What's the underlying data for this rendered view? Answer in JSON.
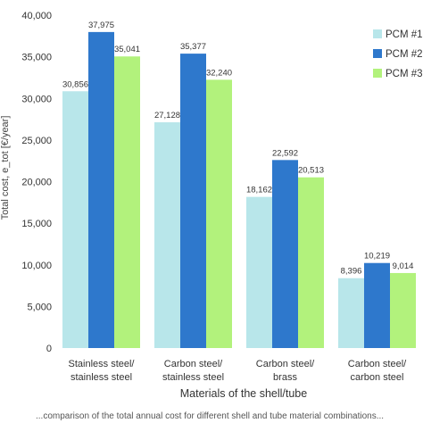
{
  "chart_data": {
    "type": "bar",
    "xlabel": "Materials of the shell/tube",
    "ylabel": "Total cost, e_tot [€/year]",
    "ylim": [
      0,
      40000
    ],
    "yticks": [
      "0",
      "5,000",
      "10,000",
      "15,000",
      "20,000",
      "25,000",
      "30,000",
      "35,000",
      "40,000"
    ],
    "categories": [
      [
        "Stainless steel/",
        "stainless steel"
      ],
      [
        "Carbon steel/",
        "stainless steel"
      ],
      [
        "Carbon steel/",
        "brass"
      ],
      [
        "Carbon steel/",
        "carbon steel"
      ]
    ],
    "series": [
      {
        "name": "PCM #1",
        "color": "#b8e6ea",
        "values": [
          30856,
          27128,
          18162,
          8396
        ],
        "labels": [
          "30,856",
          "27,128",
          "18,162",
          "8,396"
        ]
      },
      {
        "name": "PCM #2",
        "color": "#2e78cc",
        "values": [
          37975,
          35377,
          22592,
          10219
        ],
        "labels": [
          "37,975",
          "35,377",
          "22,592",
          "10,219"
        ]
      },
      {
        "name": "PCM #3",
        "color": "#b2f27c",
        "values": [
          35041,
          32240,
          20513,
          9014
        ],
        "labels": [
          "35,041",
          "32,240",
          "20,513",
          "9,014"
        ]
      }
    ],
    "grid": false,
    "legend": "right"
  },
  "caption": "...comparison of the total annual cost for different shell and tube material combinations..."
}
